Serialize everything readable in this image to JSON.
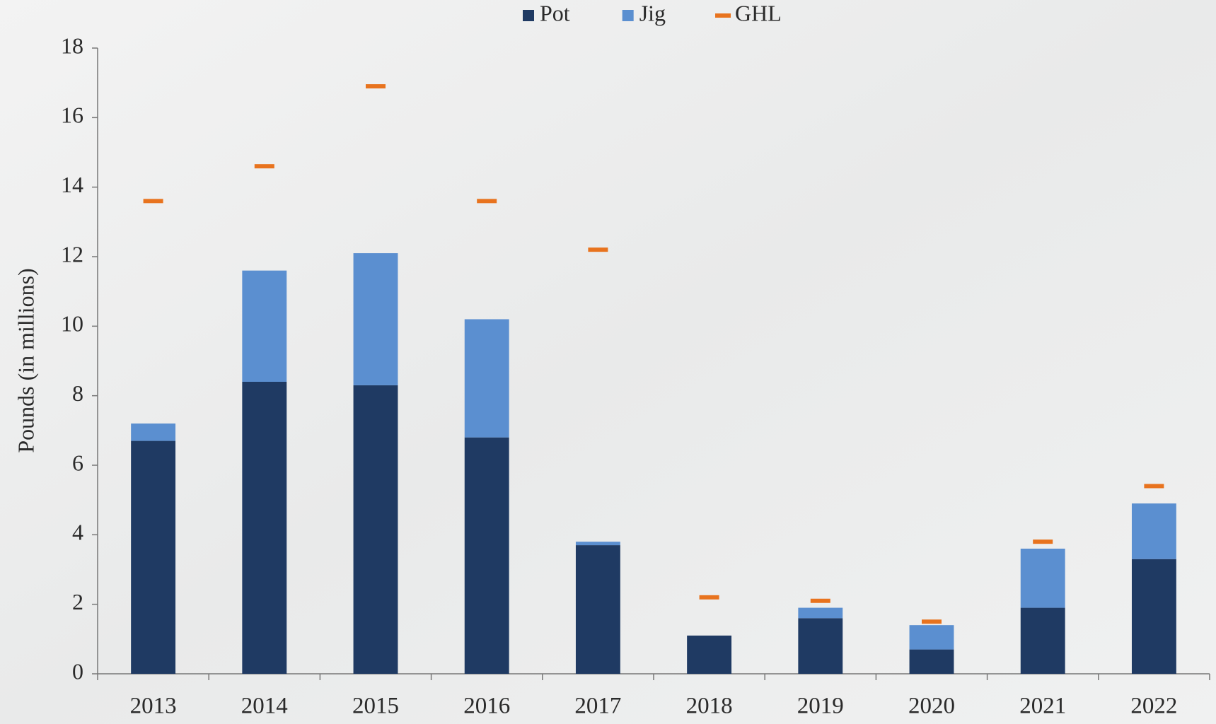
{
  "chart_data": {
    "type": "bar",
    "stacked": true,
    "y_label": "Pounds (in millions)",
    "categories": [
      "2013",
      "2014",
      "2015",
      "2016",
      "2017",
      "2018",
      "2019",
      "2020",
      "2021",
      "2022"
    ],
    "series": [
      {
        "name": "Pot",
        "color": "#1f3a63",
        "values": [
          6.7,
          8.4,
          8.3,
          6.8,
          3.7,
          1.1,
          1.6,
          0.7,
          1.9,
          3.3
        ]
      },
      {
        "name": "Jig",
        "color": "#5b8fd0",
        "values": [
          0.5,
          3.2,
          3.8,
          3.4,
          0.1,
          0,
          0.3,
          0.7,
          1.7,
          1.6
        ]
      },
      {
        "name": "GHL",
        "color": "#e8731e",
        "type": "marker",
        "values": [
          13.6,
          14.6,
          16.9,
          13.6,
          12.2,
          2.2,
          2.1,
          1.5,
          3.8,
          5.4
        ]
      }
    ],
    "ylim": [
      0,
      18
    ],
    "yticks": [
      0,
      2,
      4,
      6,
      8,
      10,
      12,
      14,
      16,
      18
    ],
    "grid": false,
    "legend": "top"
  }
}
